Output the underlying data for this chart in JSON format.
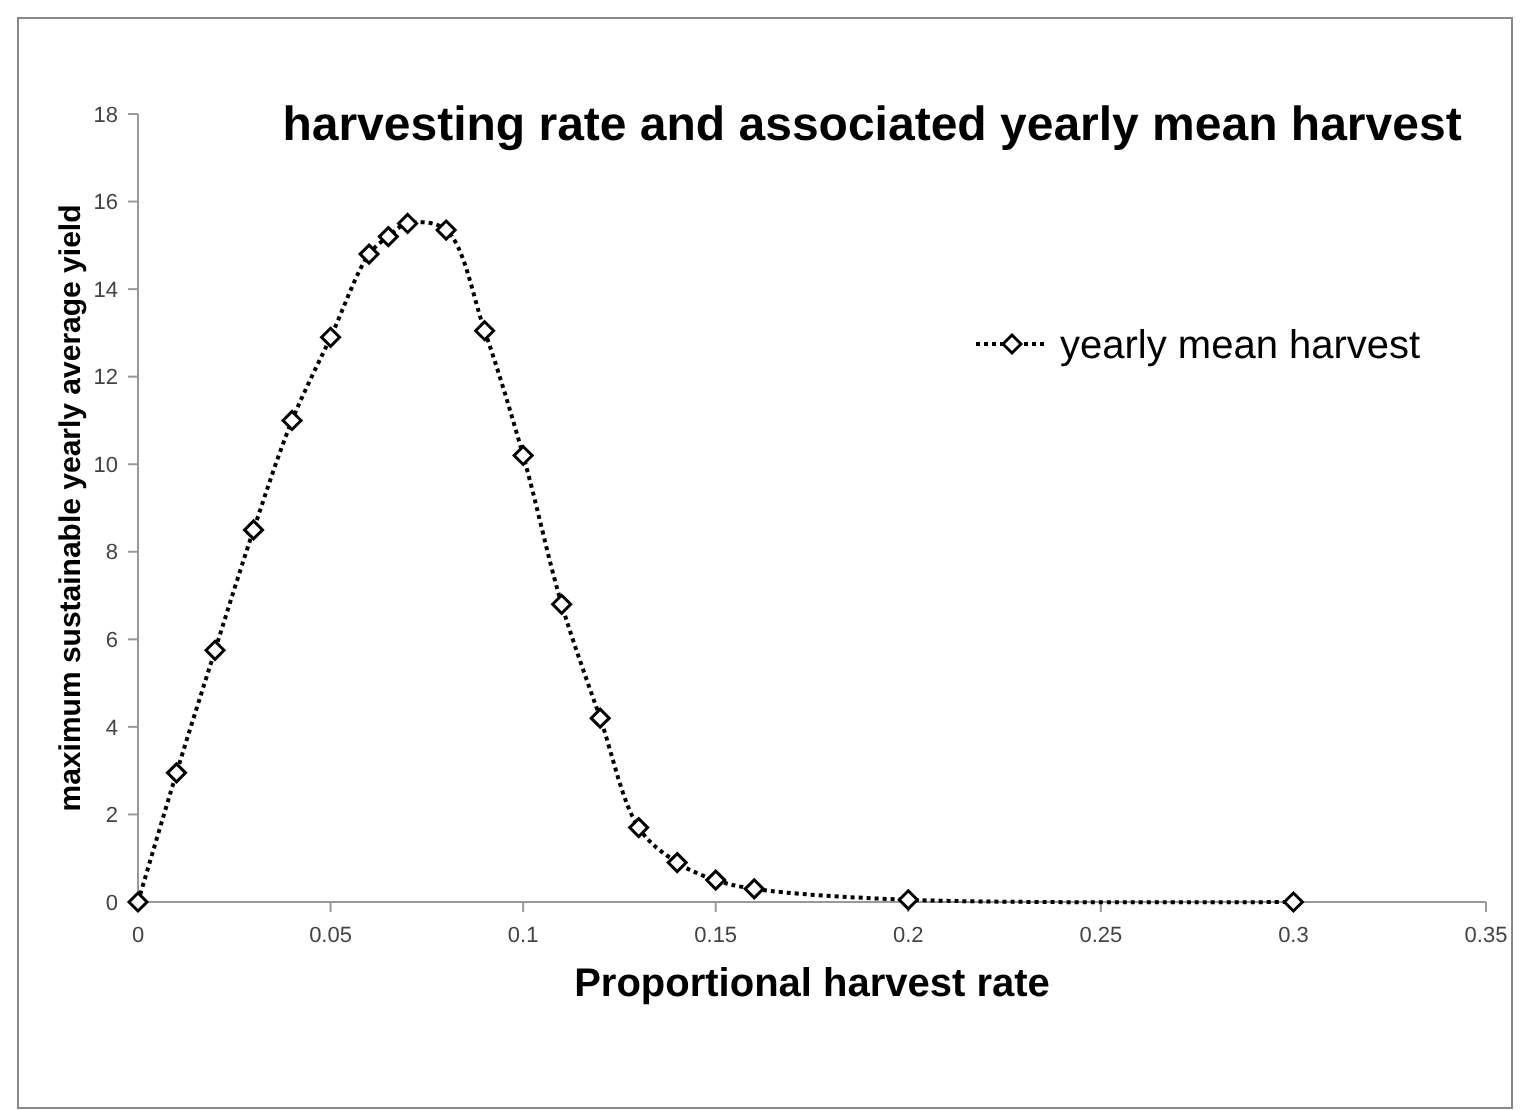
{
  "chart_data": {
    "type": "line",
    "title": "harvesting rate and associated yearly mean harvest",
    "xlabel": "Proportional harvest rate",
    "ylabel": "maximum sustainable yearly average yield",
    "x": [
      0,
      0.01,
      0.02,
      0.03,
      0.04,
      0.05,
      0.06,
      0.065,
      0.07,
      0.08,
      0.09,
      0.1,
      0.11,
      0.12,
      0.13,
      0.14,
      0.15,
      0.16,
      0.2,
      0.3
    ],
    "series": [
      {
        "name": "yearly mean harvest",
        "color": "#000000",
        "values": [
          0,
          2.95,
          5.75,
          8.5,
          11,
          12.9,
          14.8,
          15.2,
          15.5,
          15.35,
          13.05,
          10.2,
          6.8,
          4.2,
          1.7,
          0.9,
          0.5,
          0.3,
          0.05,
          0
        ]
      }
    ],
    "xlim": [
      0,
      0.35
    ],
    "xticks": [
      0,
      0.05,
      0.1,
      0.15,
      0.2,
      0.25,
      0.3,
      0.35
    ],
    "ylim": [
      0,
      18
    ],
    "yticks": [
      0,
      2,
      4,
      6,
      8,
      10,
      12,
      14,
      16,
      18
    ],
    "grid": false,
    "legend": "top right",
    "marker": "diamond",
    "line_style": "dotted"
  }
}
